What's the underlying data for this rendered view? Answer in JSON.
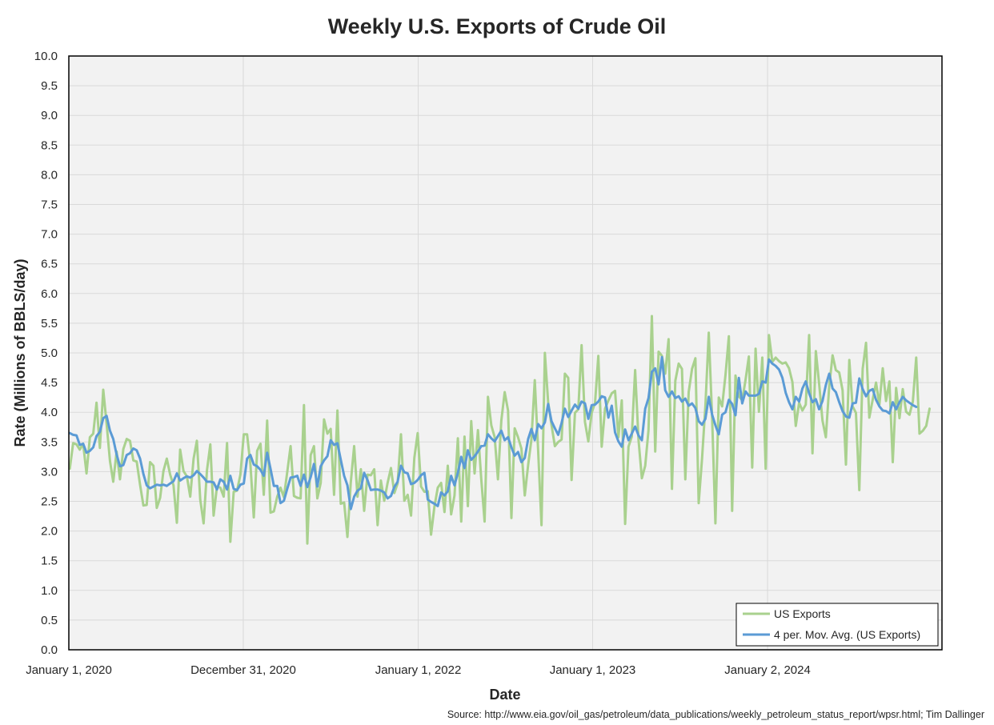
{
  "chart_data": {
    "type": "line",
    "title": "Weekly U.S. Exports of Crude Oil",
    "xlabel": "Date",
    "ylabel": "Rate (Millions of BBLS/day)",
    "source": "Source: http://www.eia.gov/oil_gas/petroleum/data_publications/weekly_petroleum_status_report/wpsr.html; Tim Dallinger",
    "ylim": [
      0,
      10
    ],
    "ytick_step": 0.5,
    "xlim": [
      "2020-01-01",
      "2025-01-01"
    ],
    "x_ticks": [
      {
        "date": "2020-01-01",
        "label": "January 1, 2020"
      },
      {
        "date": "2020-12-31",
        "label": "December 31, 2020"
      },
      {
        "date": "2022-01-01",
        "label": "January 1, 2022"
      },
      {
        "date": "2023-01-01",
        "label": "January 1, 2023"
      },
      {
        "date": "2024-01-02",
        "label": "January 2, 2024"
      }
    ],
    "grid": true,
    "legend_position": "bottom-right",
    "start_date": "2020-01-03",
    "interval_days": 7,
    "series": [
      {
        "name": "US Exports",
        "color": "#a9d18e",
        "values": [
          3.05,
          3.48,
          3.46,
          3.37,
          3.47,
          2.97,
          3.58,
          3.64,
          4.16,
          3.4,
          4.38,
          3.81,
          3.18,
          2.83,
          3.34,
          2.87,
          3.38,
          3.55,
          3.52,
          3.19,
          3.17,
          2.78,
          2.43,
          2.44,
          3.16,
          3.1,
          2.39,
          2.56,
          3.01,
          3.22,
          2.95,
          2.77,
          2.14,
          3.37,
          3.01,
          2.92,
          2.58,
          3.22,
          3.52,
          2.53,
          2.13,
          3.02,
          3.46,
          2.26,
          2.75,
          2.73,
          2.58,
          3.48,
          1.82,
          2.66,
          2.68,
          2.95,
          3.63,
          3.63,
          3.12,
          2.23,
          3.35,
          3.47,
          2.61,
          3.86,
          2.31,
          2.33,
          2.58,
          2.73,
          2.57,
          2.99,
          3.43,
          2.59,
          2.56,
          2.55,
          4.12,
          1.79,
          3.28,
          3.43,
          2.55,
          2.81,
          3.88,
          3.64,
          3.72,
          2.61,
          4.03,
          2.46,
          2.48,
          1.9,
          2.82,
          3.43,
          2.58,
          3.04,
          2.34,
          2.95,
          2.94,
          3.04,
          2.1,
          2.85,
          2.51,
          2.81,
          3.06,
          2.64,
          2.8,
          3.63,
          2.51,
          2.61,
          2.26,
          3.23,
          3.65,
          2.75,
          2.66,
          2.67,
          1.94,
          2.41,
          2.73,
          2.81,
          2.32,
          3.1,
          2.28,
          2.6,
          3.56,
          2.16,
          3.59,
          2.42,
          3.85,
          2.97,
          3.7,
          2.88,
          2.16,
          4.26,
          3.78,
          3.58,
          2.87,
          3.86,
          4.34,
          4.03,
          2.22,
          3.73,
          3.58,
          3.39,
          2.6,
          3.11,
          3.54,
          4.54,
          3.36,
          2.1,
          5.0,
          4.17,
          3.79,
          3.43,
          3.5,
          3.54,
          4.65,
          4.58,
          2.86,
          3.99,
          4.05,
          5.13,
          3.84,
          3.51,
          3.99,
          4.16,
          4.95,
          3.42,
          4.06,
          4.2,
          4.32,
          4.36,
          3.58,
          4.2,
          2.12,
          3.42,
          3.59,
          4.71,
          3.54,
          2.89,
          3.1,
          3.7,
          5.62,
          3.34,
          5.02,
          4.95,
          4.65,
          5.23,
          2.71,
          4.53,
          4.82,
          4.73,
          2.87,
          4.34,
          4.73,
          4.91,
          2.47,
          3.22,
          4.11,
          5.34,
          3.91,
          2.13,
          4.25,
          4.1,
          4.63,
          5.28,
          2.34,
          4.62,
          4.27,
          4.2,
          4.55,
          4.94,
          3.07,
          5.07,
          4.01,
          4.92,
          3.05,
          5.3,
          4.85,
          4.92,
          4.86,
          4.82,
          4.84,
          4.74,
          4.51,
          3.77,
          4.16,
          4.03,
          4.13,
          5.3,
          3.31,
          5.03,
          4.48,
          3.86,
          3.58,
          4.44,
          4.96,
          4.71,
          4.67,
          4.37,
          3.12,
          4.88,
          4.1,
          3.99,
          2.69,
          4.73,
          5.17,
          3.91,
          4.21,
          4.5,
          4.13,
          4.74,
          4.19,
          4.52,
          3.16,
          4.41,
          3.9,
          4.39,
          4.01,
          3.96,
          4.18,
          4.92,
          3.64,
          3.69,
          3.77,
          4.06
        ]
      },
      {
        "name": "4 per. Mov. Avg. (US Exports)",
        "color": "#5b9bd5",
        "values": [
          3.65,
          3.62,
          3.61,
          3.45,
          3.47,
          3.32,
          3.35,
          3.41,
          3.6,
          3.67,
          3.9,
          3.94,
          3.69,
          3.55,
          3.29,
          3.09,
          3.11,
          3.28,
          3.31,
          3.39,
          3.36,
          3.22,
          2.96,
          2.77,
          2.72,
          2.75,
          2.78,
          2.77,
          2.78,
          2.76,
          2.8,
          2.84,
          2.97,
          2.85,
          2.89,
          2.92,
          2.9,
          2.94,
          3.01,
          2.96,
          2.9,
          2.83,
          2.83,
          2.82,
          2.7,
          2.87,
          2.83,
          2.7,
          2.93,
          2.71,
          2.69,
          2.78,
          2.8,
          3.22,
          3.28,
          3.12,
          3.09,
          3.03,
          2.93,
          3.32,
          3.05,
          2.76,
          2.76,
          2.47,
          2.51,
          2.71,
          2.9,
          2.91,
          2.93,
          2.76,
          2.95,
          2.74,
          2.91,
          3.13,
          2.75,
          3.09,
          3.19,
          3.26,
          3.53,
          3.45,
          3.48,
          3.2,
          2.93,
          2.77,
          2.37,
          2.58,
          2.68,
          2.72,
          2.98,
          2.86,
          2.69,
          2.7,
          2.7,
          2.68,
          2.65,
          2.55,
          2.59,
          2.74,
          2.83,
          3.1,
          2.99,
          2.97,
          2.79,
          2.81,
          2.86,
          2.94,
          2.98,
          2.53,
          2.49,
          2.46,
          2.42,
          2.65,
          2.6,
          2.67,
          2.93,
          2.77,
          2.98,
          3.25,
          3.06,
          3.36,
          3.2,
          3.26,
          3.34,
          3.43,
          3.44,
          3.63,
          3.56,
          3.51,
          3.6,
          3.69,
          3.53,
          3.58,
          3.41,
          3.27,
          3.33,
          3.16,
          3.23,
          3.55,
          3.72,
          3.53,
          3.8,
          3.73,
          3.83,
          4.14,
          3.85,
          3.73,
          3.62,
          3.82,
          4.06,
          3.92,
          4.03,
          4.13,
          4.06,
          4.18,
          4.15,
          3.89,
          4.12,
          4.13,
          4.18,
          4.27,
          4.25,
          3.91,
          4.11,
          3.66,
          3.51,
          3.42,
          3.71,
          3.53,
          3.64,
          3.76,
          3.61,
          3.53,
          4.06,
          4.24,
          4.68,
          4.74,
          4.47,
          4.93,
          4.37,
          4.26,
          4.35,
          4.24,
          4.27,
          4.18,
          4.23,
          4.11,
          4.15,
          4.07,
          3.85,
          3.79,
          3.89,
          4.26,
          3.96,
          3.78,
          3.63,
          3.96,
          4.0,
          4.21,
          4.14,
          3.95,
          4.58,
          4.15,
          4.35,
          4.28,
          4.28,
          4.28,
          4.31,
          4.52,
          4.5,
          4.89,
          4.82,
          4.78,
          4.72,
          4.58,
          4.33,
          4.17,
          4.05,
          4.26,
          4.18,
          4.4,
          4.52,
          4.32,
          4.17,
          4.22,
          4.05,
          4.19,
          4.46,
          4.65,
          4.4,
          4.34,
          4.17,
          4.02,
          3.93,
          3.91,
          4.15,
          4.16,
          4.57,
          4.39,
          4.27,
          4.36,
          4.39,
          4.21,
          4.1,
          4.03,
          4.02,
          3.98,
          4.17,
          4.05,
          4.17,
          4.26,
          4.2,
          4.16,
          4.12,
          4.09
        ]
      }
    ]
  }
}
